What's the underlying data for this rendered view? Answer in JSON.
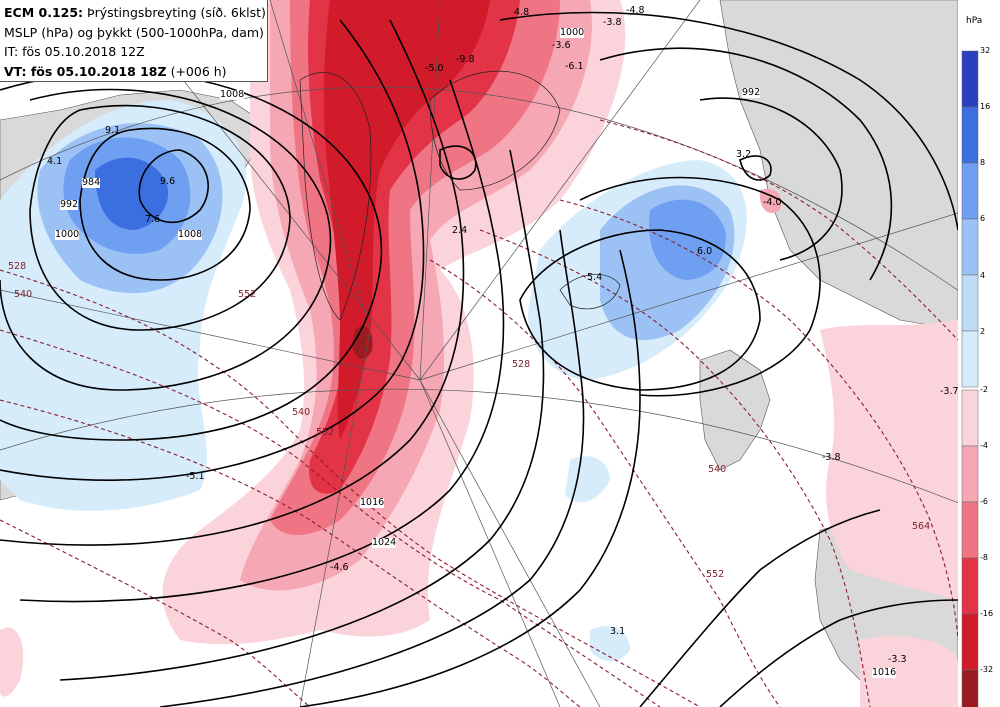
{
  "header": {
    "line1_model": "ECM 0.125:",
    "line1_rest": "Þrýstingsbreyting (síð. 6klst)",
    "line2": "MSLP (hPa) og þykkt (500-1000hPa, dam)",
    "line3": "IT: fös 05.10.2018 12Z",
    "line4_bold": "VT: fös 05.10.2018 18Z",
    "line4_rest": "(+006 h)"
  },
  "legend": {
    "unit": "hPa",
    "rise_ticks": [
      "32",
      "16",
      "8",
      "6",
      "4",
      "2"
    ],
    "rise_colors": [
      "#2a3fbf",
      "#3b6fe0",
      "#6e9ff0",
      "#9cc2f5",
      "#bfdcf7",
      "#d6ecfb"
    ],
    "fall_ticks": [
      "-2",
      "-4",
      "-6",
      "-8",
      "-16",
      "-32"
    ],
    "fall_colors": [
      "#fbd3db",
      "#f6a7b4",
      "#ef7585",
      "#e23446",
      "#d11a2a",
      "#9b1b22"
    ]
  },
  "change_labels": [
    "4.8",
    "-4.8",
    "-3.8",
    "-5.0",
    "-9.8",
    "-3.6",
    "-6.1",
    "9.1",
    "4.1",
    "9.6",
    "7.6",
    "3.2",
    "-4.0",
    "2.4",
    "6.0",
    "5.4",
    "-3.7",
    "-3.8",
    "-5.1",
    "-4.6",
    "3.1",
    "-3.3"
  ],
  "isobar_labels": [
    "992",
    "1000",
    "984",
    "992",
    "1000",
    "1008",
    "1016",
    "1024",
    "1008",
    "1016"
  ],
  "thickness_labels": [
    "528",
    "540",
    "552",
    "540",
    "552",
    "528",
    "540",
    "552",
    "564"
  ]
}
